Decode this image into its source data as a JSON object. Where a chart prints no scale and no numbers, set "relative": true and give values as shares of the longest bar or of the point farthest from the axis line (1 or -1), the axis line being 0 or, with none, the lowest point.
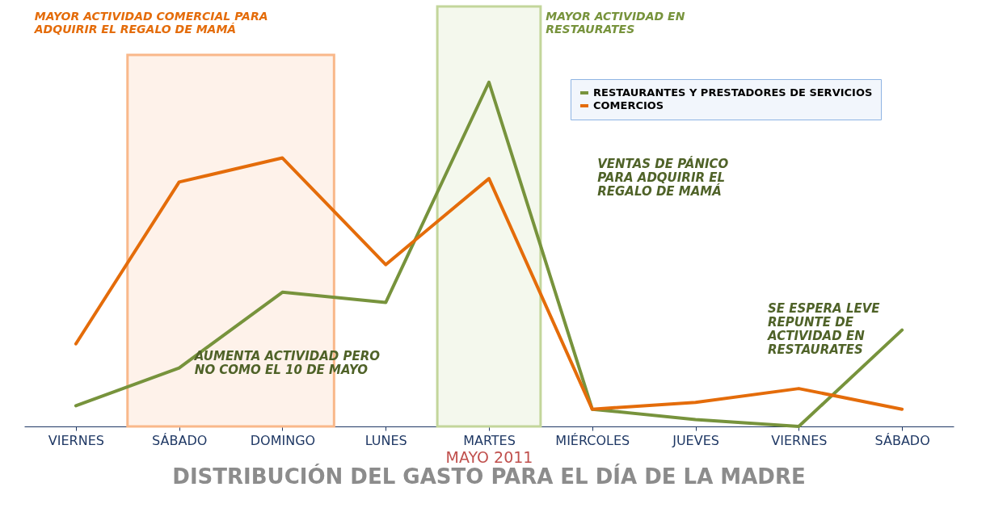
{
  "chart_data": {
    "type": "line",
    "title": "DISTRIBUCIÓN DEL GASTO PARA EL DÍA DE LA MADRE",
    "xlabel": "MAYO 2011",
    "categories": [
      "VIERNES",
      "SÁBADO",
      "DOMINGO",
      "LUNES",
      "MARTES",
      "MIÉRCOLES",
      "JUEVES",
      "VIERNES",
      "SÁBADO"
    ],
    "relative": true,
    "legend": "top right",
    "series": [
      {
        "name": "RESTAURANTES Y PRESTADORES DE SERVICIOS",
        "color": "#77933c",
        "values": [
          0.06,
          0.17,
          0.39,
          0.36,
          1,
          0.05,
          0.02,
          0,
          0.28
        ]
      },
      {
        "name": "COMERCIOS",
        "color": "#e46c0a",
        "values": [
          0.24,
          0.71,
          0.78,
          0.47,
          0.72,
          0.05,
          0.07,
          0.11,
          0.05
        ]
      }
    ],
    "bands": [
      {
        "axis": "x",
        "from": "SÁBADO",
        "to": "DOMINGO",
        "label": "MAYOR ACTIVIDAD COMERCIAL PARA ADQUIRIR EL REGALO DE MAMÁ",
        "color": "#f9b88a"
      },
      {
        "axis": "x",
        "from": "MARTES",
        "to": "MARTES",
        "label": "MAYOR ACTIVIDAD EN RESTAURATES",
        "color": "#c3d69b"
      }
    ],
    "annotations": [
      "AUMENTA ACTIVIDAD PERO NO COMO EL 10 DE MAYO",
      "VENTAS DE PÁNICO PARA ADQUIRIR EL REGALO DE MAMÁ",
      "SE ESPERA LEVE REPUNTE DE ACTIVIDAD EN RESTAURATES"
    ]
  }
}
